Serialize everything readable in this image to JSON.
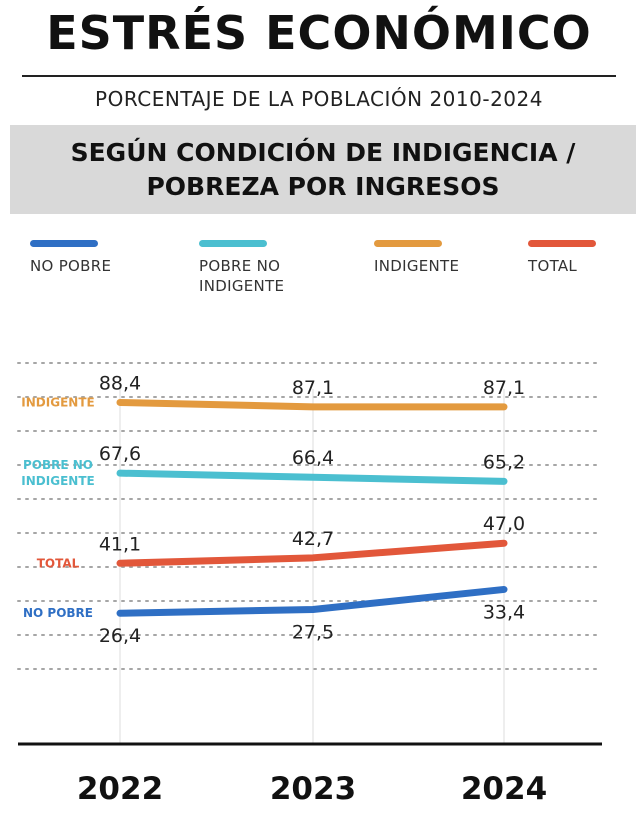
{
  "header": {
    "title": "ESTRÉS ECONÓMICO",
    "subtitle": "PORCENTAJE DE LA POBLACIÓN 2010-2024",
    "band_line1": "SEGÚN CONDICIÓN DE INDIGENCIA /",
    "band_line2": "POBREZA POR INGRESOS"
  },
  "legend": [
    {
      "line1": "NO POBRE",
      "line2": "",
      "color": "#2f6fc4"
    },
    {
      "line1": "POBRE NO",
      "line2": "INDIGENTE",
      "color": "#4bbfd0"
    },
    {
      "line1": "INDIGENTE",
      "line2": "",
      "color": "#e39a3f"
    },
    {
      "line1": "TOTAL",
      "line2": "",
      "color": "#e2573a"
    }
  ],
  "chart_data": {
    "type": "line",
    "title": "ESTRÉS ECONÓMICO",
    "subtitle": "PORCENTAJE DE LA POBLACIÓN 2010-2024",
    "categories": [
      "2022",
      "2023",
      "2024"
    ],
    "ylim": [
      10,
      100
    ],
    "grid": true,
    "legend_position": "top",
    "series": [
      {
        "name": "INDIGENTE",
        "inline_label": "INDIGENTE",
        "color": "#e39a3f",
        "values": [
          88.4,
          87.1,
          87.1
        ],
        "labels": [
          "88,4",
          "87,1",
          "87,1"
        ],
        "label_pos": "above"
      },
      {
        "name": "POBRE NO INDIGENTE",
        "inline_label": [
          "POBRE NO",
          "INDIGENTE"
        ],
        "color": "#4bbfd0",
        "values": [
          67.6,
          66.4,
          65.2
        ],
        "labels": [
          "67,6",
          "66,4",
          "65,2"
        ],
        "label_pos": "above"
      },
      {
        "name": "TOTAL",
        "inline_label": "TOTAL",
        "color": "#e2573a",
        "values": [
          41.1,
          42.7,
          47.0
        ],
        "labels": [
          "41,1",
          "42,7",
          "47,0"
        ],
        "label_pos": "above"
      },
      {
        "name": "NO POBRE",
        "inline_label": "NO POBRE",
        "color": "#2f6fc4",
        "values": [
          26.4,
          27.5,
          33.4
        ],
        "labels": [
          "26,4",
          "27,5",
          "33,4"
        ],
        "label_pos": "below"
      }
    ]
  }
}
